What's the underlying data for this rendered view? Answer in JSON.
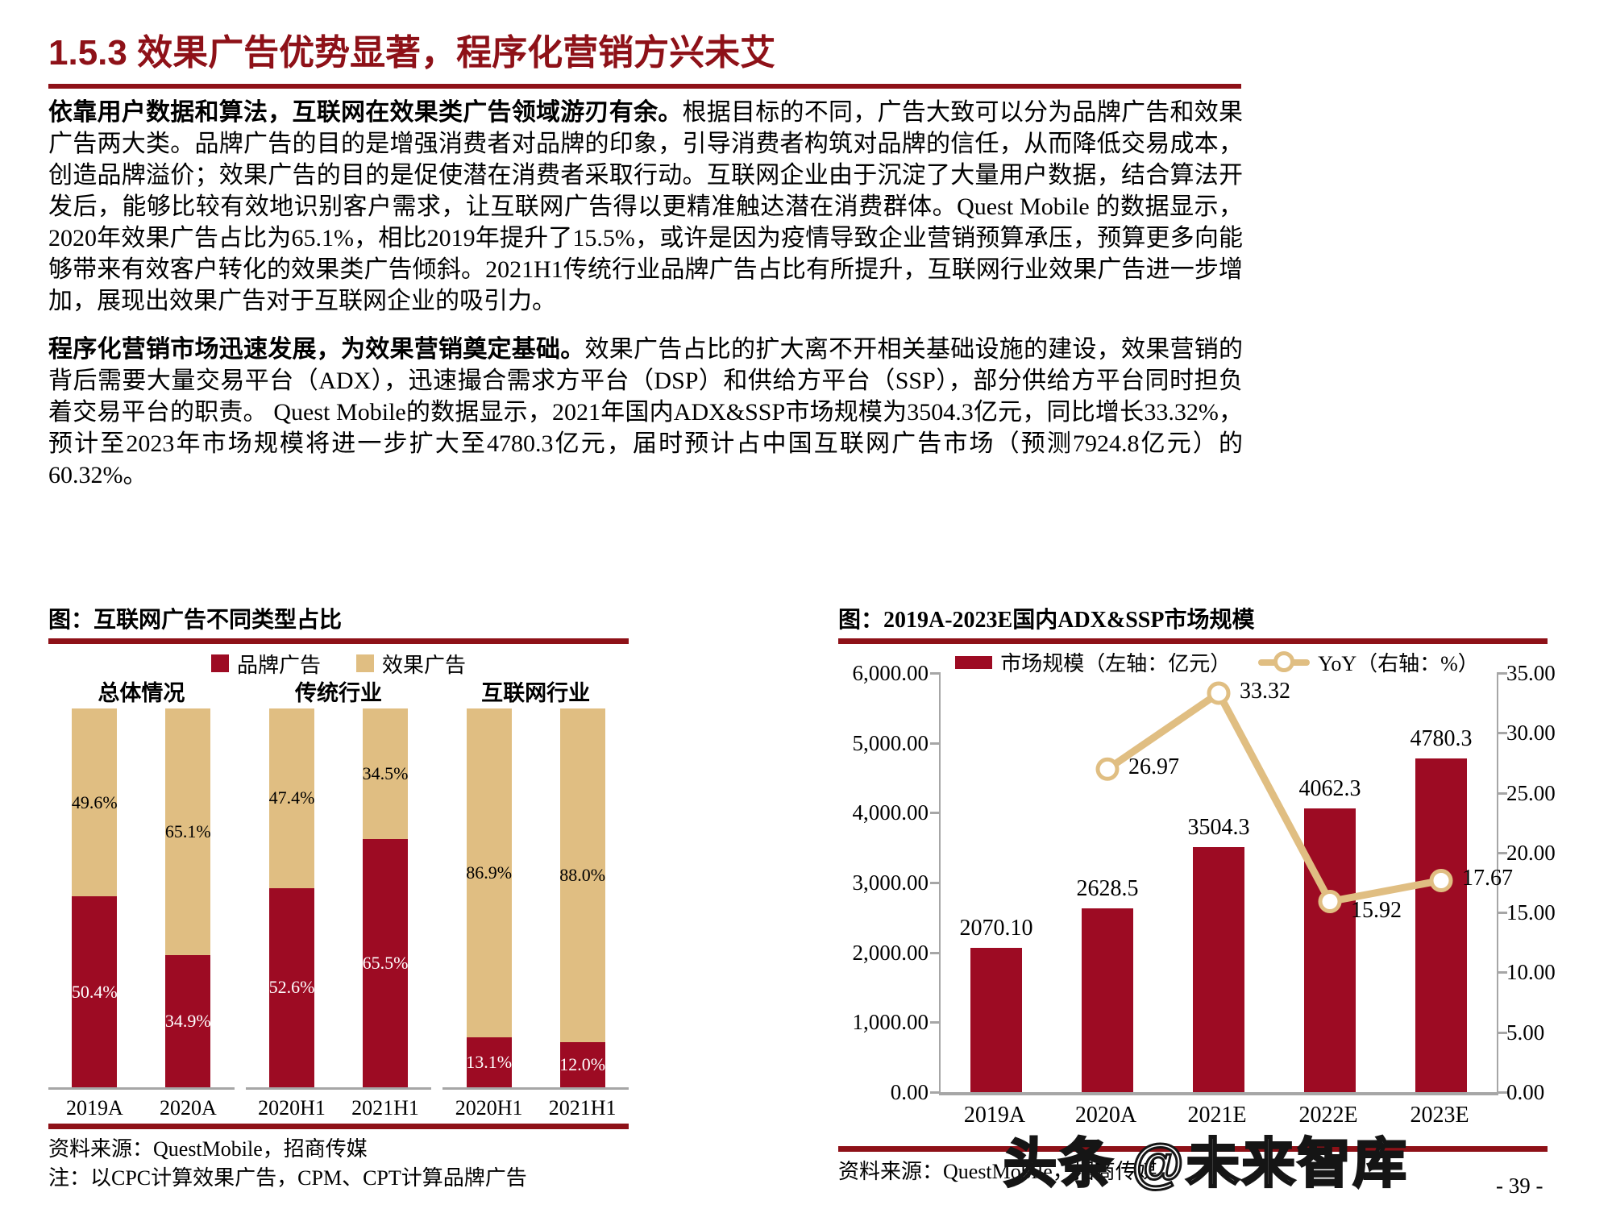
{
  "page": {
    "title": "1.5.3 效果广告优势显著，程序化营销方兴未艾",
    "page_number": "- 39 -",
    "watermark": "头条 @未来智库"
  },
  "colors": {
    "accent": "#8E1118",
    "bar_red": "#9D0B23",
    "tan": "#E0BE82",
    "axis_gray": "#A6A6A6"
  },
  "paragraphs": [
    {
      "lead": "依靠用户数据和算法，互联网在效果类广告领域游刃有余。",
      "body": "根据目标的不同，广告大致可以分为品牌广告和效果广告两大类。品牌广告的目的是增强消费者对品牌的印象，引导消费者构筑对品牌的信任，从而降低交易成本，创造品牌溢价；效果广告的目的是促使潜在消费者采取行动。互联网企业由于沉淀了大量用户数据，结合算法开发后，能够比较有效地识别客户需求，让互联网广告得以更精准触达潜在消费群体。Quest Mobile 的数据显示，2020年效果广告占比为65.1%，相比2019年提升了15.5%，或许是因为疫情导致企业营销预算承压，预算更多向能够带来有效客户转化的效果类广告倾斜。2021H1传统行业品牌广告占比有所提升，互联网行业效果广告进一步增加，展现出效果广告对于互联网企业的吸引力。"
    },
    {
      "lead": "程序化营销市场迅速发展，为效果营销奠定基础。",
      "body": "效果广告占比的扩大离不开相关基础设施的建设，效果营销的背后需要大量交易平台（ADX），迅速撮合需求方平台（DSP）和供给方平台（SSP），部分供给方平台同时担负着交易平台的职责。 Quest Mobile的数据显示，2021年国内ADX&SSP市场规模为3504.3亿元，同比增长33.32%，预计至2023年市场规模将进一步扩大至4780.3亿元，届时预计占中国互联网广告市场（预测7924.8亿元）的60.32%。"
    }
  ],
  "chart_data": [
    {
      "type": "bar",
      "subtype": "stacked-100-percent",
      "title": "图：互联网广告不同类型占比",
      "legend": [
        {
          "name": "品牌广告",
          "color": "#9D0B23"
        },
        {
          "name": "效果广告",
          "color": "#E0BE82"
        }
      ],
      "groups": [
        {
          "label": "总体情况",
          "items": [
            {
              "category": "2019A",
              "brand": 50.4,
              "effect": 49.6,
              "brand_label": "50.4%",
              "effect_label": "49.6%"
            },
            {
              "category": "2020A",
              "brand": 34.9,
              "effect": 65.1,
              "brand_label": "34.9%",
              "effect_label": "65.1%"
            }
          ]
        },
        {
          "label": "传统行业",
          "items": [
            {
              "category": "2020H1",
              "brand": 52.6,
              "effect": 47.4,
              "brand_label": "52.6%",
              "effect_label": "47.4%"
            },
            {
              "category": "2021H1",
              "brand": 65.5,
              "effect": 34.5,
              "brand_label": "65.5%",
              "effect_label": "34.5%"
            }
          ]
        },
        {
          "label": "互联网行业",
          "items": [
            {
              "category": "2020H1",
              "brand": 13.1,
              "effect": 86.9,
              "brand_label": "13.1%",
              "effect_label": "86.9%"
            },
            {
              "category": "2021H1",
              "brand": 12.0,
              "effect": 88.0,
              "brand_label": "12.0%",
              "effect_label": "88.0%"
            }
          ]
        }
      ],
      "source": "资料来源：QuestMobile，招商传媒",
      "note": "注：以CPC计算效果广告，CPM、CPT计算品牌广告"
    },
    {
      "type": "bar+line",
      "title": "图：2019A-2023E国内ADX&SSP市场规模",
      "categories": [
        "2019A",
        "2020A",
        "2021E",
        "2022E",
        "2023E"
      ],
      "series": [
        {
          "name": "市场规模（左轴：亿元）",
          "type": "bar",
          "axis": "left",
          "color": "#9D0B23",
          "values": [
            2070.1,
            2628.5,
            3504.3,
            4062.3,
            4780.3
          ],
          "labels": [
            "2070.10",
            "2628.5",
            "3504.3",
            "4062.3",
            "4780.3"
          ]
        },
        {
          "name": "YoY（右轴：%）",
          "type": "line",
          "axis": "right",
          "color": "#E0BE82",
          "values": [
            null,
            26.97,
            33.32,
            15.92,
            17.67
          ],
          "labels": [
            null,
            "26.97",
            "33.32",
            "15.92",
            "17.67"
          ]
        }
      ],
      "left_axis": {
        "min": 0,
        "max": 6000,
        "step": 1000,
        "ticks": [
          "6,000.00",
          "5,000.00",
          "4,000.00",
          "3,000.00",
          "2,000.00",
          "1,000.00",
          "0.00"
        ]
      },
      "right_axis": {
        "min": 0,
        "max": 35,
        "step": 5,
        "ticks": [
          "35.00",
          "30.00",
          "25.00",
          "20.00",
          "15.00",
          "10.00",
          "5.00",
          "0.00"
        ]
      },
      "legend_position": "top",
      "grid": false,
      "source": "资料来源：QuestMobile，招商传媒"
    }
  ]
}
